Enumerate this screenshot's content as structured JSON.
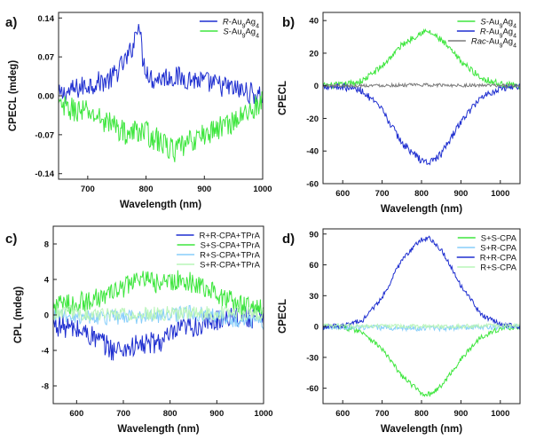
{
  "chart_data": [
    {
      "panel": "a)",
      "type": "line",
      "xlabel": "Wavelength (nm)",
      "ylabel": "CPECL (mdeg)",
      "xlim": [
        650,
        1000
      ],
      "ylim": [
        -0.15,
        0.15
      ],
      "xticks": [
        700,
        800,
        900,
        1000
      ],
      "yticks": [
        {
          "value": 0.14,
          "label": "0.14"
        },
        {
          "value": 0.07,
          "label": "0.07"
        },
        {
          "value": 0.0,
          "label": "0.00"
        },
        {
          "value": -0.07,
          "label": "-0.07"
        },
        {
          "value": -0.14,
          "label": "-0.14"
        }
      ],
      "legend_position": "top-right",
      "series": [
        {
          "name": "R-Au9Ag4",
          "color": "#1f2fd0",
          "noise": 0.02,
          "x": [
            650,
            700,
            740,
            770,
            780,
            787,
            795,
            810,
            840,
            880,
            920,
            960,
            1000
          ],
          "y": [
            0.0,
            0.02,
            0.03,
            0.07,
            0.1,
            0.14,
            0.06,
            0.03,
            0.035,
            0.03,
            0.02,
            0.01,
            0.0
          ]
        },
        {
          "name": "S-Au9Ag4",
          "color": "#3ee63e",
          "noise": 0.022,
          "x": [
            650,
            700,
            740,
            770,
            790,
            820,
            850,
            880,
            920,
            960,
            1000
          ],
          "y": [
            -0.02,
            -0.03,
            -0.05,
            -0.07,
            -0.06,
            -0.08,
            -0.1,
            -0.08,
            -0.06,
            -0.04,
            -0.01
          ]
        }
      ]
    },
    {
      "panel": "b)",
      "type": "line",
      "xlabel": "Wavelength (nm)",
      "ylabel": "CPECL",
      "xlim": [
        550,
        1050
      ],
      "ylim": [
        -60,
        45
      ],
      "xticks": [
        600,
        700,
        800,
        900,
        1000
      ],
      "yticks": [
        {
          "value": 40,
          "label": "40"
        },
        {
          "value": 20,
          "label": "20"
        },
        {
          "value": 0,
          "label": "0"
        },
        {
          "value": -20,
          "label": "-20"
        },
        {
          "value": -40,
          "label": "-40"
        },
        {
          "value": -60,
          "label": "-60"
        }
      ],
      "legend_position": "top-right",
      "series": [
        {
          "name": "S-Au9Ag4",
          "color": "#3ee63e",
          "noise": 2.0,
          "x": [
            550,
            600,
            650,
            700,
            750,
            800,
            820,
            850,
            900,
            950,
            1000,
            1050
          ],
          "y": [
            0,
            0.5,
            3,
            12,
            25,
            33,
            33,
            28,
            15,
            5,
            1,
            0
          ]
        },
        {
          "name": "R-Au9Ag4",
          "color": "#1f2fd0",
          "noise": 2.2,
          "x": [
            550,
            600,
            650,
            700,
            750,
            800,
            820,
            850,
            900,
            950,
            1000,
            1050
          ],
          "y": [
            0,
            -0.5,
            -3,
            -15,
            -35,
            -46,
            -47,
            -42,
            -22,
            -7,
            -1.5,
            0
          ]
        },
        {
          "name": "Rac-Au9Ag4",
          "color": "#7a7a7a",
          "noise": 1.0,
          "x": [
            550,
            800,
            1050
          ],
          "y": [
            0,
            0.5,
            0
          ]
        }
      ]
    },
    {
      "panel": "c)",
      "type": "line",
      "xlabel": "Wavelength (nm)",
      "ylabel": "CPL (mdeg)",
      "xlim": [
        550,
        1000
      ],
      "ylim": [
        -10,
        10
      ],
      "xticks": [
        600,
        700,
        800,
        900,
        1000
      ],
      "yticks": [
        {
          "value": 8,
          "label": "8"
        },
        {
          "value": 4,
          "label": "4"
        },
        {
          "value": 0,
          "label": "0"
        },
        {
          "value": -4,
          "label": "-4"
        },
        {
          "value": -8,
          "label": "-8"
        }
      ],
      "legend_position": "top-right",
      "series": [
        {
          "name": "R+R-CPA+TPrA",
          "color": "#1f2fd0",
          "noise": 1.3,
          "x": [
            550,
            620,
            680,
            730,
            780,
            830,
            880,
            930,
            1000
          ],
          "y": [
            -1,
            -2,
            -4,
            -3.5,
            -3,
            -1.5,
            -1,
            0,
            -0.5
          ]
        },
        {
          "name": "S+S-CPA+TPrA",
          "color": "#3ee63e",
          "noise": 1.2,
          "x": [
            550,
            620,
            680,
            730,
            780,
            830,
            880,
            930,
            1000
          ],
          "y": [
            1,
            1.5,
            2.5,
            4,
            3.5,
            4,
            3,
            1.5,
            0.5
          ]
        },
        {
          "name": "R+S-CPA+TPrA",
          "color": "#87cefa",
          "noise": 0.9,
          "x": [
            550,
            700,
            850,
            1000
          ],
          "y": [
            0,
            -0.3,
            0.2,
            -1
          ]
        },
        {
          "name": "S+R-CPA+TPrA",
          "color": "#b9f5b9",
          "noise": 0.8,
          "x": [
            550,
            700,
            850,
            1000
          ],
          "y": [
            0.3,
            0,
            0.3,
            0
          ]
        }
      ]
    },
    {
      "panel": "d)",
      "type": "line",
      "xlabel": "Wavelength (nm)",
      "ylabel": "CPECL",
      "xlim": [
        550,
        1050
      ],
      "ylim": [
        -75,
        95
      ],
      "xticks": [
        600,
        700,
        800,
        900,
        1000
      ],
      "yticks": [
        {
          "value": 90,
          "label": "90"
        },
        {
          "value": 60,
          "label": "60"
        },
        {
          "value": 30,
          "label": "30"
        },
        {
          "value": 0,
          "label": "0"
        },
        {
          "value": -30,
          "label": "-30"
        },
        {
          "value": -60,
          "label": "-60"
        }
      ],
      "legend_position": "top-right",
      "series": [
        {
          "name": "S+S-CPA",
          "color": "#3ee63e",
          "noise": 2.5,
          "x": [
            550,
            600,
            650,
            700,
            750,
            800,
            820,
            850,
            900,
            950,
            1000,
            1050
          ],
          "y": [
            0,
            -0.5,
            -5,
            -22,
            -48,
            -65,
            -66,
            -58,
            -32,
            -10,
            -2,
            0
          ]
        },
        {
          "name": "S+R-CPA",
          "color": "#87cefa",
          "noise": 2.5,
          "x": [
            550,
            800,
            1050
          ],
          "y": [
            0,
            -2,
            0
          ]
        },
        {
          "name": "R+R-CPA",
          "color": "#1f2fd0",
          "noise": 2.5,
          "x": [
            550,
            600,
            650,
            700,
            750,
            800,
            820,
            850,
            900,
            950,
            1000,
            1050
          ],
          "y": [
            0,
            0.5,
            6,
            28,
            65,
            85,
            86,
            75,
            40,
            12,
            2,
            0
          ]
        },
        {
          "name": "R+S-CPA",
          "color": "#b9f5b9",
          "noise": 2.0,
          "x": [
            550,
            800,
            1050
          ],
          "y": [
            1,
            0,
            1
          ]
        }
      ]
    }
  ]
}
